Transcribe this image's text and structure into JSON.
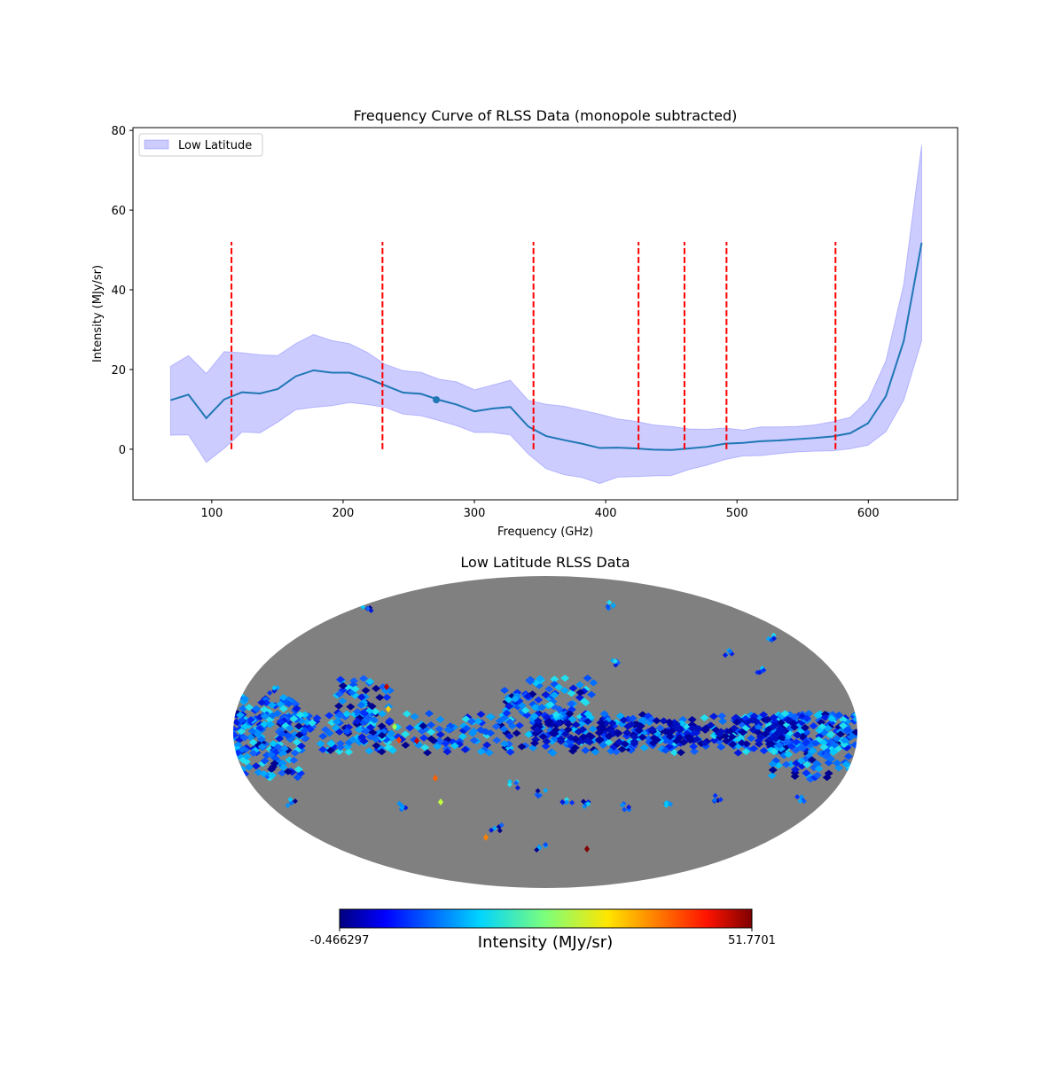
{
  "chart_data": [
    {
      "type": "line",
      "title": "Frequency Curve of RLSS Data (monopole subtracted)",
      "xlabel": "Frequency (GHz)",
      "ylabel": "Intensity (MJy/sr)",
      "xlim": [
        40,
        668
      ],
      "ylim": [
        -12.7,
        80.7
      ],
      "xticks": [
        100,
        200,
        300,
        400,
        500,
        600
      ],
      "yticks": [
        0,
        20,
        40,
        60,
        80
      ],
      "legend": {
        "placement": "top-left",
        "entries": [
          "Low Latitude"
        ]
      },
      "colors": {
        "line": "#1f77b4",
        "band": "#0000ff",
        "vlines": "#ff0000"
      },
      "x_start": 68.6,
      "x_step": 13.62,
      "series": [
        {
          "name": "mean",
          "values": [
            12.3,
            13.7,
            7.8,
            12.5,
            14.3,
            14.0,
            15.1,
            18.3,
            19.8,
            19.2,
            19.2,
            17.8,
            16.0,
            14.2,
            13.9,
            12.4,
            11.2,
            9.5,
            10.2,
            10.6,
            5.7,
            3.3,
            2.3,
            1.4,
            0.3,
            0.4,
            0.2,
            -0.1,
            -0.2,
            0.2,
            0.6,
            1.4,
            1.6,
            2.0,
            2.2,
            2.5,
            2.8,
            3.2,
            4.0,
            6.5,
            13.3,
            27.2,
            51.8
          ]
        },
        {
          "name": "Low Latitude upper",
          "values": [
            20.8,
            23.5,
            19.0,
            24.5,
            24.2,
            23.7,
            23.5,
            26.5,
            28.8,
            27.3,
            26.5,
            24.3,
            21.3,
            19.7,
            19.3,
            17.6,
            16.9,
            14.9,
            16.1,
            17.3,
            12.3,
            11.3,
            10.8,
            9.8,
            8.8,
            7.6,
            7.0,
            6.1,
            5.7,
            5.1,
            5.0,
            5.3,
            4.8,
            5.6,
            5.6,
            5.7,
            6.1,
            6.9,
            8.0,
            12.3,
            22.2,
            41.5,
            76.3
          ]
        },
        {
          "name": "Low Latitude lower",
          "values": [
            3.5,
            3.6,
            -3.3,
            0.2,
            4.3,
            4.1,
            6.8,
            9.9,
            10.5,
            10.9,
            11.7,
            11.2,
            10.5,
            8.8,
            8.4,
            7.2,
            5.9,
            4.2,
            4.2,
            3.6,
            -1.2,
            -4.9,
            -6.4,
            -7.1,
            -8.6,
            -7.0,
            -6.9,
            -6.7,
            -6.6,
            -5.1,
            -4.0,
            -2.6,
            -1.7,
            -1.6,
            -1.1,
            -0.7,
            -0.5,
            -0.4,
            0.1,
            1.0,
            4.4,
            12.3,
            27.2
          ]
        }
      ],
      "highlight_point": {
        "x": 271,
        "y": 12.4
      },
      "vlines": {
        "x": [
          115,
          230,
          345,
          425,
          460,
          492,
          575
        ],
        "ymin": 0,
        "ymax": 52
      }
    },
    {
      "type": "heatmap",
      "title": "Low Latitude RLSS Data",
      "projection": "mollweide",
      "colorbar": {
        "label": "Intensity (MJy/sr)",
        "min_label": "-0.466297",
        "max_label": "51.7701",
        "min": -0.466297,
        "max": 51.7701,
        "colormap": "jet"
      }
    }
  ]
}
